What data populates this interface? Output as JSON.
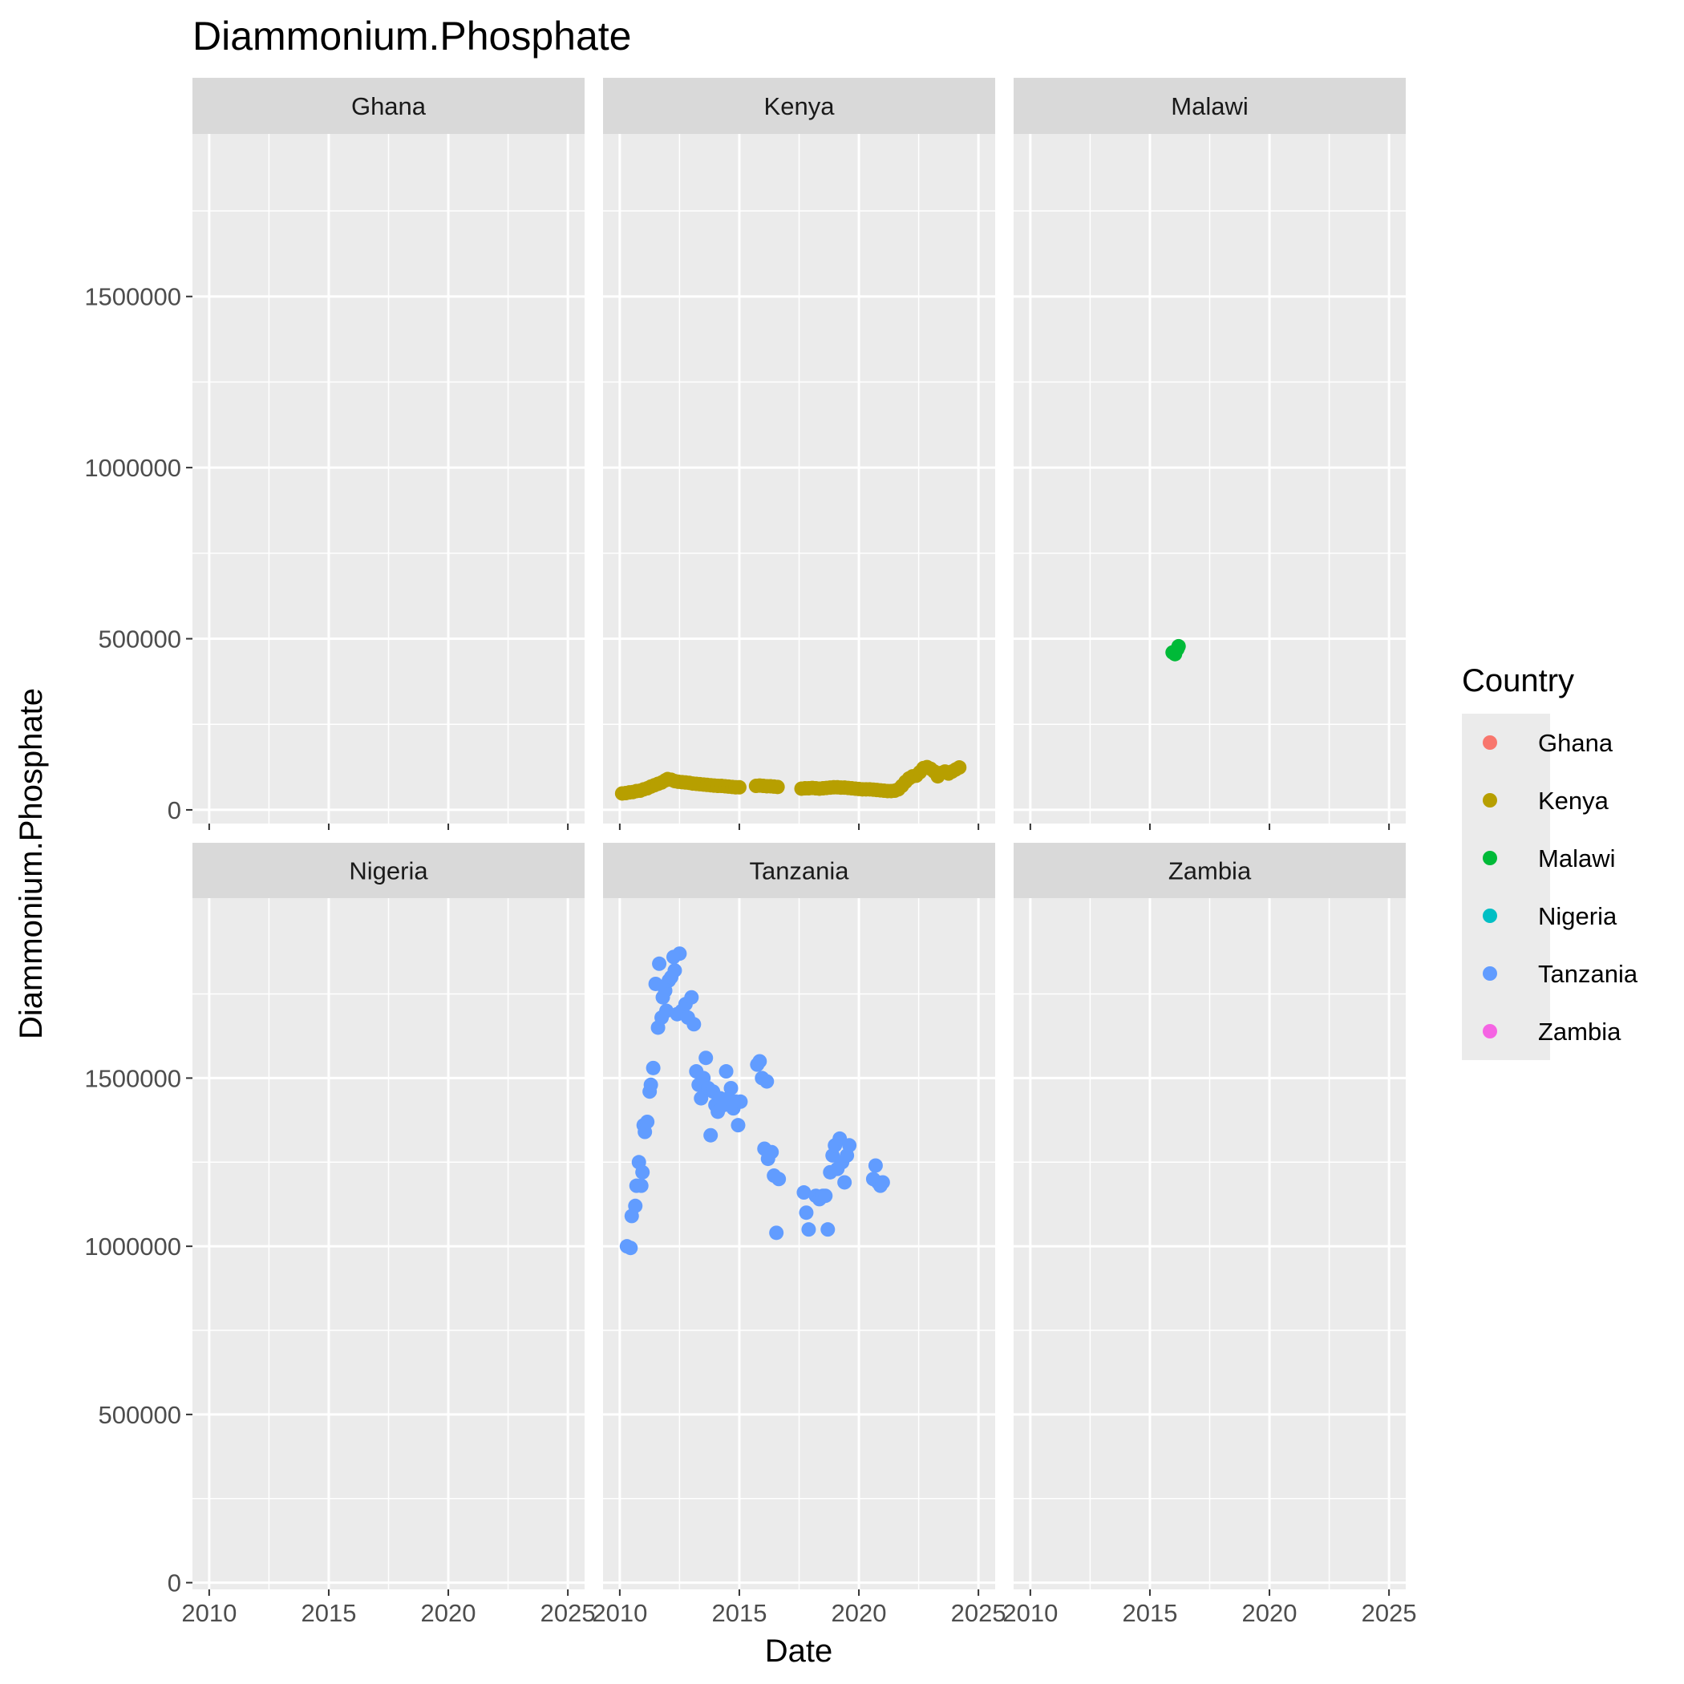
{
  "chart_data": {
    "type": "scatter",
    "title": "Diammonium.Phosphate",
    "xlabel": "Date",
    "ylabel": "Diammonium.Phosphate",
    "xlim": [
      2009.3,
      2025.7
    ],
    "x_ticks": [
      2010,
      2015,
      2020,
      2025
    ],
    "x_tick_labels": [
      "2010",
      "2015",
      "2020",
      "2025"
    ],
    "y_ticks": [
      0,
      500000,
      1000000,
      1500000
    ],
    "y_tick_labels": [
      "0",
      "500000",
      "1000000",
      "1500000"
    ],
    "row_ylim": [
      [
        -40000,
        1975000
      ],
      [
        -20000,
        2035000
      ]
    ],
    "grid": true,
    "facet_layout": "wrap 3x2",
    "legend": {
      "title": "Country",
      "position": "right",
      "entries": [
        "Ghana",
        "Kenya",
        "Malawi",
        "Nigeria",
        "Tanzania",
        "Zambia"
      ]
    },
    "colors": {
      "Ghana": "#F8766D",
      "Kenya": "#B79F00",
      "Malawi": "#00BA38",
      "Nigeria": "#00BFC4",
      "Tanzania": "#619CFF",
      "Zambia": "#F564E3"
    },
    "panels": [
      {
        "name": "Ghana",
        "row": 0,
        "col": 0,
        "points": []
      },
      {
        "name": "Kenya",
        "row": 0,
        "col": 1,
        "points": [
          [
            2010.1,
            48000
          ],
          [
            2010.25,
            49000
          ],
          [
            2010.4,
            51000
          ],
          [
            2010.55,
            52000
          ],
          [
            2010.7,
            55000
          ],
          [
            2010.85,
            56000
          ],
          [
            2011.0,
            60000
          ],
          [
            2011.15,
            63000
          ],
          [
            2011.3,
            68000
          ],
          [
            2011.45,
            72000
          ],
          [
            2011.6,
            76000
          ],
          [
            2011.75,
            80000
          ],
          [
            2011.9,
            86000
          ],
          [
            2012.0,
            90000
          ],
          [
            2012.15,
            88000
          ],
          [
            2012.3,
            84000
          ],
          [
            2012.45,
            82000
          ],
          [
            2012.6,
            81000
          ],
          [
            2012.75,
            80000
          ],
          [
            2012.9,
            79000
          ],
          [
            2013.05,
            77000
          ],
          [
            2013.2,
            76000
          ],
          [
            2013.35,
            75000
          ],
          [
            2013.5,
            74000
          ],
          [
            2013.65,
            73000
          ],
          [
            2013.8,
            72000
          ],
          [
            2013.95,
            71000
          ],
          [
            2014.1,
            70000
          ],
          [
            2014.25,
            70000
          ],
          [
            2014.4,
            69000
          ],
          [
            2014.55,
            68000
          ],
          [
            2014.7,
            67000
          ],
          [
            2014.85,
            66000
          ],
          [
            2015.0,
            66000
          ],
          [
            2015.7,
            70000
          ],
          [
            2015.85,
            71000
          ],
          [
            2016.0,
            70000
          ],
          [
            2016.15,
            69000
          ],
          [
            2016.3,
            69000
          ],
          [
            2016.45,
            68000
          ],
          [
            2016.6,
            67000
          ],
          [
            2017.6,
            62000
          ],
          [
            2017.75,
            63000
          ],
          [
            2017.9,
            63000
          ],
          [
            2018.05,
            64000
          ],
          [
            2018.2,
            63000
          ],
          [
            2018.35,
            62000
          ],
          [
            2018.5,
            63000
          ],
          [
            2018.65,
            64000
          ],
          [
            2018.8,
            65000
          ],
          [
            2018.95,
            66000
          ],
          [
            2019.1,
            66000
          ],
          [
            2019.25,
            65000
          ],
          [
            2019.4,
            65000
          ],
          [
            2019.55,
            64000
          ],
          [
            2019.7,
            63000
          ],
          [
            2019.85,
            62000
          ],
          [
            2020.0,
            61000
          ],
          [
            2020.15,
            60000
          ],
          [
            2020.3,
            60000
          ],
          [
            2020.45,
            60000
          ],
          [
            2020.6,
            59000
          ],
          [
            2020.75,
            58000
          ],
          [
            2020.9,
            57000
          ],
          [
            2021.05,
            56000
          ],
          [
            2021.2,
            55000
          ],
          [
            2021.35,
            55000
          ],
          [
            2021.5,
            56000
          ],
          [
            2021.65,
            60000
          ],
          [
            2021.8,
            70000
          ],
          [
            2021.95,
            82000
          ],
          [
            2022.1,
            92000
          ],
          [
            2022.25,
            98000
          ],
          [
            2022.4,
            100000
          ],
          [
            2022.55,
            110000
          ],
          [
            2022.7,
            122000
          ],
          [
            2022.85,
            125000
          ],
          [
            2023.0,
            120000
          ],
          [
            2023.15,
            112000
          ],
          [
            2023.3,
            98000
          ],
          [
            2023.45,
            108000
          ],
          [
            2023.6,
            112000
          ],
          [
            2023.75,
            106000
          ],
          [
            2023.9,
            112000
          ],
          [
            2024.05,
            118000
          ],
          [
            2024.2,
            124000
          ]
        ]
      },
      {
        "name": "Malawi",
        "row": 0,
        "col": 2,
        "points": [
          [
            2015.95,
            460000
          ],
          [
            2016.05,
            455000
          ],
          [
            2016.15,
            470000
          ],
          [
            2016.2,
            478000
          ]
        ]
      },
      {
        "name": "Nigeria",
        "row": 1,
        "col": 0,
        "points": []
      },
      {
        "name": "Tanzania",
        "row": 1,
        "col": 1,
        "points": [
          [
            2010.3,
            1000000
          ],
          [
            2010.45,
            995000
          ],
          [
            2010.5,
            1090000
          ],
          [
            2010.65,
            1120000
          ],
          [
            2010.7,
            1180000
          ],
          [
            2010.8,
            1250000
          ],
          [
            2010.9,
            1180000
          ],
          [
            2010.95,
            1220000
          ],
          [
            2011.0,
            1360000
          ],
          [
            2011.05,
            1340000
          ],
          [
            2011.15,
            1370000
          ],
          [
            2011.25,
            1460000
          ],
          [
            2011.3,
            1480000
          ],
          [
            2011.4,
            1530000
          ],
          [
            2011.5,
            1780000
          ],
          [
            2011.6,
            1650000
          ],
          [
            2011.65,
            1840000
          ],
          [
            2011.75,
            1680000
          ],
          [
            2011.8,
            1740000
          ],
          [
            2011.9,
            1760000
          ],
          [
            2011.95,
            1700000
          ],
          [
            2012.05,
            1790000
          ],
          [
            2012.15,
            1800000
          ],
          [
            2012.25,
            1860000
          ],
          [
            2012.3,
            1820000
          ],
          [
            2012.4,
            1690000
          ],
          [
            2012.5,
            1870000
          ],
          [
            2012.6,
            1700000
          ],
          [
            2012.75,
            1720000
          ],
          [
            2012.85,
            1680000
          ],
          [
            2013.0,
            1740000
          ],
          [
            2013.1,
            1660000
          ],
          [
            2013.2,
            1520000
          ],
          [
            2013.3,
            1480000
          ],
          [
            2013.4,
            1440000
          ],
          [
            2013.5,
            1500000
          ],
          [
            2013.6,
            1560000
          ],
          [
            2013.7,
            1470000
          ],
          [
            2013.8,
            1330000
          ],
          [
            2013.9,
            1460000
          ],
          [
            2014.0,
            1420000
          ],
          [
            2014.1,
            1400000
          ],
          [
            2014.2,
            1440000
          ],
          [
            2014.35,
            1420000
          ],
          [
            2014.45,
            1520000
          ],
          [
            2014.55,
            1440000
          ],
          [
            2014.65,
            1470000
          ],
          [
            2014.75,
            1410000
          ],
          [
            2014.85,
            1430000
          ],
          [
            2014.95,
            1360000
          ],
          [
            2015.05,
            1430000
          ],
          [
            2015.75,
            1540000
          ],
          [
            2015.85,
            1550000
          ],
          [
            2015.95,
            1500000
          ],
          [
            2016.05,
            1290000
          ],
          [
            2016.15,
            1490000
          ],
          [
            2016.2,
            1260000
          ],
          [
            2016.35,
            1280000
          ],
          [
            2016.45,
            1210000
          ],
          [
            2016.55,
            1040000
          ],
          [
            2016.65,
            1200000
          ],
          [
            2017.7,
            1160000
          ],
          [
            2017.8,
            1100000
          ],
          [
            2017.9,
            1050000
          ],
          [
            2018.2,
            1150000
          ],
          [
            2018.35,
            1140000
          ],
          [
            2018.5,
            1150000
          ],
          [
            2018.6,
            1150000
          ],
          [
            2018.7,
            1050000
          ],
          [
            2018.8,
            1220000
          ],
          [
            2018.9,
            1270000
          ],
          [
            2019.0,
            1300000
          ],
          [
            2019.1,
            1230000
          ],
          [
            2019.2,
            1320000
          ],
          [
            2019.3,
            1250000
          ],
          [
            2019.4,
            1190000
          ],
          [
            2019.5,
            1270000
          ],
          [
            2019.6,
            1300000
          ],
          [
            2020.6,
            1200000
          ],
          [
            2020.7,
            1240000
          ],
          [
            2020.8,
            1190000
          ],
          [
            2020.9,
            1180000
          ],
          [
            2021.0,
            1190000
          ]
        ]
      },
      {
        "name": "Zambia",
        "row": 1,
        "col": 2,
        "points": []
      }
    ]
  }
}
